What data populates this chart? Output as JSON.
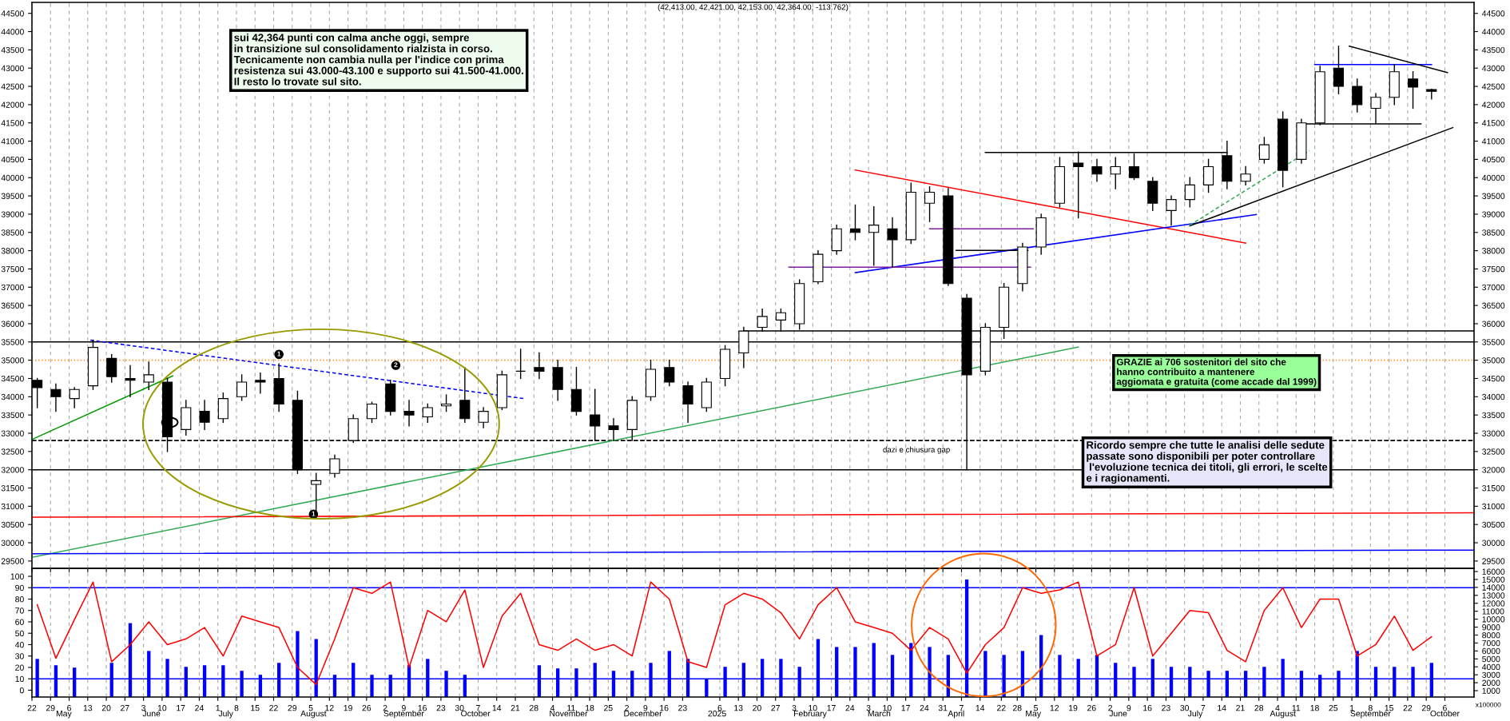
{
  "chart_data": [
    {
      "type": "candlestick",
      "title": "(42,413.00, 42,421.00, 42,153.00, 42,364.00, -113.762)",
      "x": [
        "2024-04-24",
        "2024-05-01",
        "2024-05-08",
        "2024-05-15",
        "2024-05-22",
        "2024-05-29",
        "2024-06-05",
        "2024-06-12",
        "2024-06-19",
        "2024-06-26",
        "2024-07-03",
        "2024-07-10",
        "2024-07-17",
        "2024-07-24",
        "2024-07-31",
        "2024-08-07",
        "2024-08-14",
        "2024-08-21",
        "2024-08-28",
        "2024-09-04",
        "2024-09-11",
        "2024-09-18",
        "2024-09-25",
        "2024-10-02",
        "2024-10-09",
        "2024-10-16",
        "2024-10-23",
        "2024-10-30",
        "2024-11-06",
        "2024-11-13",
        "2024-11-20",
        "2024-11-27",
        "2024-12-04",
        "2024-12-11",
        "2024-12-18",
        "2024-12-25",
        "2025-01-01",
        "2025-01-08",
        "2025-01-15",
        "2025-01-22",
        "2025-01-29",
        "2025-02-05",
        "2025-02-12",
        "2025-02-19",
        "2025-02-26",
        "2025-03-05",
        "2025-03-12",
        "2025-03-19",
        "2025-03-26",
        "2025-04-02",
        "2025-04-09",
        "2025-04-16",
        "2025-04-23",
        "2025-04-30",
        "2025-05-07",
        "2025-05-14",
        "2025-05-21",
        "2025-05-28",
        "2025-06-04",
        "2025-06-11",
        "2025-06-18",
        "2025-06-25",
        "2025-07-02",
        "2025-07-09",
        "2025-07-16",
        "2025-07-23",
        "2025-07-30",
        "2025-08-06",
        "2025-08-13",
        "2025-08-20",
        "2025-08-27",
        "2025-09-03",
        "2025-09-10",
        "2025-09-17",
        "2025-09-24",
        "2025-10-01"
      ],
      "ohlc": [
        [
          34450,
          34500,
          33700,
          34250
        ],
        [
          34200,
          34350,
          33600,
          34000
        ],
        [
          33950,
          34250,
          33700,
          34200
        ],
        [
          34300,
          35550,
          34200,
          35350
        ],
        [
          35050,
          35150,
          34400,
          34550
        ],
        [
          34500,
          34850,
          34000,
          34450
        ],
        [
          34400,
          34950,
          34200,
          34600
        ],
        [
          34400,
          34500,
          32500,
          32900
        ],
        [
          33100,
          33900,
          32950,
          33700
        ],
        [
          33600,
          33900,
          33100,
          33300
        ],
        [
          33400,
          34100,
          33300,
          33950
        ],
        [
          34000,
          34600,
          33900,
          34400
        ],
        [
          34450,
          34650,
          34100,
          34400
        ],
        [
          34500,
          34900,
          33600,
          33800
        ],
        [
          33900,
          34150,
          31900,
          32000
        ],
        [
          31600,
          31900,
          30700,
          31700
        ],
        [
          31900,
          32400,
          31800,
          32300
        ],
        [
          32800,
          33500,
          32750,
          33400
        ],
        [
          33400,
          33850,
          33300,
          33800
        ],
        [
          34350,
          34450,
          33500,
          33600
        ],
        [
          33600,
          33900,
          33200,
          33500
        ],
        [
          33450,
          33800,
          33300,
          33700
        ],
        [
          33750,
          34050,
          33600,
          33800
        ],
        [
          33900,
          34800,
          33300,
          33400
        ],
        [
          33300,
          33700,
          33150,
          33600
        ],
        [
          33700,
          34700,
          33650,
          34600
        ],
        [
          34700,
          35300,
          34500,
          34700
        ],
        [
          34800,
          35200,
          34500,
          34700
        ],
        [
          34800,
          35000,
          33900,
          34200
        ],
        [
          34200,
          34800,
          33500,
          33600
        ],
        [
          33500,
          34200,
          32800,
          33200
        ],
        [
          33200,
          33400,
          32800,
          33100
        ],
        [
          33100,
          34000,
          32800,
          33900
        ],
        [
          34000,
          35000,
          33900,
          34750
        ],
        [
          34800,
          35000,
          34300,
          34400
        ],
        [
          34300,
          34400,
          33300,
          33800
        ],
        [
          33700,
          34500,
          33600,
          34400
        ],
        [
          34500,
          35400,
          34300,
          35300
        ],
        [
          35200,
          35900,
          34800,
          35800
        ],
        [
          35900,
          36400,
          35800,
          36200
        ],
        [
          36100,
          36400,
          35800,
          36300
        ],
        [
          36000,
          37200,
          35850,
          37100
        ],
        [
          37150,
          38000,
          37100,
          37900
        ],
        [
          38000,
          38700,
          37900,
          38600
        ],
        [
          38600,
          39250,
          38300,
          38500
        ],
        [
          38500,
          39200,
          37600,
          38700
        ],
        [
          38600,
          38900,
          37550,
          38300
        ],
        [
          38300,
          39850,
          38200,
          39600
        ],
        [
          39300,
          39750,
          38800,
          39600
        ],
        [
          39500,
          39700,
          37050,
          37100
        ],
        [
          36700,
          36800,
          32000,
          34600
        ],
        [
          34700,
          36000,
          34600,
          35900
        ],
        [
          35900,
          37100,
          35600,
          37000
        ],
        [
          37100,
          38200,
          36900,
          38100
        ],
        [
          38100,
          39000,
          37900,
          38900
        ],
        [
          39300,
          40550,
          39200,
          40300
        ],
        [
          40400,
          40700,
          38900,
          40300
        ],
        [
          40300,
          40500,
          39900,
          40100
        ],
        [
          40100,
          40550,
          39700,
          40300
        ],
        [
          40300,
          40650,
          39950,
          40000
        ],
        [
          39900,
          40000,
          39100,
          39300
        ],
        [
          39100,
          39500,
          38700,
          39400
        ],
        [
          39400,
          40000,
          39200,
          39800
        ],
        [
          39800,
          40500,
          39600,
          40300
        ],
        [
          40600,
          41000,
          39700,
          39900
        ],
        [
          39900,
          40300,
          39800,
          40100
        ],
        [
          40500,
          41100,
          40400,
          40900
        ],
        [
          41600,
          41800,
          39750,
          40200
        ],
        [
          40500,
          41600,
          40400,
          41500
        ],
        [
          41500,
          43050,
          41450,
          42900
        ],
        [
          43000,
          43600,
          42300,
          42500
        ],
        [
          42500,
          42700,
          41800,
          42000
        ],
        [
          41900,
          42300,
          41500,
          42200
        ],
        [
          42200,
          43100,
          42000,
          42900
        ],
        [
          42700,
          42900,
          41900,
          42480
        ],
        [
          42413,
          42421,
          42153,
          42364
        ]
      ],
      "color": "#000000",
      "series": [
        {
          "type": "line",
          "color": "#009900",
          "x": [
            "2024-04-22",
            "2024-06-14"
          ],
          "values": [
            32830,
            34570
          ]
        },
        {
          "type": "line",
          "color": "#0000ff",
          "line_style": "dashed",
          "x": [
            "2024-05-14",
            "2024-10-24"
          ],
          "values": [
            35550,
            33950
          ]
        },
        {
          "type": "line",
          "color": "#33aa55",
          "x": [
            "2024-04-22",
            "2025-05-21"
          ],
          "values": [
            29600,
            35360
          ]
        },
        {
          "type": "line",
          "color": "#ff0000",
          "x": [
            "2025-02-26",
            "2025-07-23"
          ],
          "values": [
            40210,
            38210
          ]
        },
        {
          "type": "line",
          "color": "#0000ff",
          "x": [
            "2025-02-26",
            "2025-07-27"
          ],
          "values": [
            37400,
            38990
          ]
        },
        {
          "type": "line",
          "color": "#7b1fa2",
          "x": [
            "2025-02-01",
            "2025-05-03"
          ],
          "values": [
            37550,
            37550
          ]
        },
        {
          "type": "line",
          "color": "#7b1fa2",
          "x": [
            "2025-03-26",
            "2025-05-04"
          ],
          "values": [
            38600,
            38600
          ]
        },
        {
          "type": "line",
          "color": "#000000",
          "x": [
            "2025-04-05",
            "2025-05-02"
          ],
          "values": [
            38010,
            38010
          ]
        },
        {
          "type": "line",
          "color": "#000000",
          "x": [
            "2025-04-16",
            "2025-07-16"
          ],
          "values": [
            40690,
            40690
          ]
        },
        {
          "type": "line",
          "color": "#000000",
          "x": [
            "2025-07-02",
            "2025-10-09"
          ],
          "values": [
            38680,
            41370
          ]
        },
        {
          "type": "line",
          "color": "#33aa55",
          "line_style": "dashed",
          "x": [
            "2025-07-02",
            "2025-08-16"
          ],
          "values": [
            38700,
            40740
          ]
        },
        {
          "type": "line",
          "color": "#0000ff",
          "x": [
            "2025-08-18",
            "2025-10-01"
          ],
          "values": [
            43100,
            43100
          ]
        },
        {
          "type": "line",
          "color": "#000000",
          "x": [
            "2025-08-15",
            "2025-09-27"
          ],
          "values": [
            41470,
            41470
          ]
        },
        {
          "type": "line",
          "color": "#000000",
          "x": [
            "2025-08-31",
            "2025-10-07"
          ],
          "values": [
            43600,
            42880
          ]
        },
        {
          "type": "line",
          "color": "#000000",
          "x": [
            "2025-01-15",
            "2025-10-17"
          ],
          "values": [
            35800,
            35800
          ]
        },
        {
          "type": "line",
          "color": "#ff0000",
          "x": [
            "2024-04-22",
            "2025-10-17"
          ],
          "values": [
            30700,
            30820
          ]
        },
        {
          "type": "line",
          "color": "#0000ff",
          "x": [
            "2024-04-22",
            "2025-10-17"
          ],
          "values": [
            29700,
            29800
          ]
        }
      ],
      "ref_lines": [
        {
          "axis": "y",
          "value": 35500,
          "color": "#000000"
        },
        {
          "axis": "y",
          "value": 32000,
          "color": "#000000"
        },
        {
          "axis": "y",
          "value": 32800,
          "color": "#000000",
          "line_style": "dashed"
        },
        {
          "axis": "y",
          "value": 35000,
          "color": "#ff9933",
          "line_style": "dotted"
        }
      ],
      "annotations": [
        "sui 42,364 punti con calma anche oggi, sempre\nin transizione sul consolidamento rialzista in corso.\nTecnicamente non cambia nulla per l'indice con prima\nresistenza sui 43.000-43.100 e supporto sui 41.500-41.000.\nIl resto lo trovate sul sito.",
        "GRAZIE ai 706 sostenitori del sito che\nhanno contribuito a mantenere\naggiomata e gratuita (come accade dal 1999)",
        "Ricordo sempre che tutte le analisi delle sedute\npassate sono disponibili per poter controllare\n l'evoluzione tecnica dei titoli, gli errori, le scelte\ne i ragionamenti.",
        "dazi e chiusura gap",
        {
          "text": "1",
          "x": "2024-07-24",
          "y": 35160
        },
        {
          "text": "2",
          "x": "2024-09-06",
          "y": 34860
        },
        {
          "text": "1",
          "x": "2024-08-06",
          "y": 30780
        }
      ],
      "xlim": [
        "2024-04-22",
        "2025-10-17"
      ],
      "xticks": [
        {
          "value": "2024-04-22",
          "label": null
        },
        {
          "value": "2024-04-29",
          "label": null
        },
        {
          "value": "2024-05-06",
          "label": null
        },
        {
          "value": "2024-05-13",
          "label": null
        },
        {
          "value": "2024-05-20",
          "label": null
        },
        {
          "value": "2024-05-27",
          "label": null
        },
        {
          "value": "2024-06-03",
          "label": null
        },
        {
          "value": "2024-06-10",
          "label": null
        },
        {
          "value": "2024-06-17",
          "label": null
        },
        {
          "value": "2024-06-24",
          "label": null
        },
        {
          "value": "2024-07-01",
          "label": null
        },
        {
          "value": "2024-07-08",
          "label": null
        },
        {
          "value": "2024-07-15",
          "label": null
        },
        {
          "value": "2024-07-22",
          "label": null
        },
        {
          "value": "2024-07-29",
          "label": null
        },
        {
          "value": "2024-08-05",
          "label": null
        },
        {
          "value": "2024-08-12",
          "label": null
        },
        {
          "value": "2024-08-19",
          "label": null
        },
        {
          "value": "2024-08-26",
          "label": null
        },
        {
          "value": "2024-09-02",
          "label": null
        },
        {
          "value": "2024-09-09",
          "label": null
        },
        {
          "value": "2024-09-16",
          "label": null
        },
        {
          "value": "2024-09-23",
          "label": null
        },
        {
          "value": "2024-09-30",
          "label": null
        },
        {
          "value": "2024-10-07",
          "label": null
        },
        {
          "value": "2024-10-14",
          "label": null
        },
        {
          "value": "2024-10-21",
          "label": null
        },
        {
          "value": "2024-10-28",
          "label": null
        },
        {
          "value": "2024-11-04",
          "label": null
        },
        {
          "value": "2024-11-11",
          "label": null
        },
        {
          "value": "2024-11-18",
          "label": null
        },
        {
          "value": "2024-11-25",
          "label": null
        },
        {
          "value": "2024-12-02",
          "label": null
        },
        {
          "value": "2024-12-09",
          "label": null
        },
        {
          "value": "2024-12-16",
          "label": null
        },
        {
          "value": "2024-12-23",
          "label": null
        },
        {
          "value": "2025-01-06",
          "label": null
        },
        {
          "value": "2025-01-13",
          "label": null
        },
        {
          "value": "2025-01-20",
          "label": null
        },
        {
          "value": "2025-01-27",
          "label": null
        },
        {
          "value": "2025-02-03",
          "label": null
        },
        {
          "value": "2025-02-10",
          "label": null
        },
        {
          "value": "2025-02-17",
          "label": null
        },
        {
          "value": "2025-02-24",
          "label": null
        },
        {
          "value": "2025-03-03",
          "label": null
        },
        {
          "value": "2025-03-10",
          "label": null
        },
        {
          "value": "2025-03-17",
          "label": null
        },
        {
          "value": "2025-03-24",
          "label": null
        },
        {
          "value": "2025-03-31",
          "label": null
        },
        {
          "value": "2025-04-07",
          "label": null
        },
        {
          "value": "2025-04-14",
          "label": null
        },
        {
          "value": "2025-04-22",
          "label": null
        },
        {
          "value": "2025-04-28",
          "label": null
        },
        {
          "value": "2025-05-05",
          "label": null
        },
        {
          "value": "2025-05-12",
          "label": null
        },
        {
          "value": "2025-05-19",
          "label": null
        },
        {
          "value": "2025-05-26",
          "label": null
        },
        {
          "value": "2025-06-02",
          "label": null
        },
        {
          "value": "2025-06-09",
          "label": null
        },
        {
          "value": "2025-06-16",
          "label": null
        },
        {
          "value": "2025-06-23",
          "label": null
        },
        {
          "value": "2025-06-30",
          "label": null
        },
        {
          "value": "2025-07-07",
          "label": null
        },
        {
          "value": "2025-07-14",
          "label": null
        },
        {
          "value": "2025-07-21",
          "label": null
        },
        {
          "value": "2025-07-28",
          "label": null
        },
        {
          "value": "2025-08-04",
          "label": null
        },
        {
          "value": "2025-08-11",
          "label": null
        },
        {
          "value": "2025-08-18",
          "label": null
        },
        {
          "value": "2025-08-25",
          "label": null
        },
        {
          "value": "2025-09-01",
          "label": null
        },
        {
          "value": "2025-09-08",
          "label": null
        },
        {
          "value": "2025-09-15",
          "label": null
        },
        {
          "value": "2025-09-22",
          "label": null
        },
        {
          "value": "2025-09-29",
          "label": null
        },
        {
          "value": "2025-10-06",
          "label": null
        }
      ],
      "ylim": [
        29300,
        44800
      ],
      "yticks": [
        29500,
        30000,
        30500,
        31000,
        31500,
        32000,
        32500,
        33000,
        33500,
        34000,
        34500,
        35000,
        35500,
        36000,
        36500,
        37000,
        37500,
        38000,
        38500,
        39000,
        39500,
        40000,
        40500,
        41000,
        41500,
        42000,
        42500,
        43000,
        43500,
        44000,
        44500
      ],
      "y2lim": [
        29300,
        44800
      ],
      "y2ticks": [
        29500,
        30000,
        30500,
        31000,
        31500,
        32000,
        32500,
        33000,
        33500,
        34000,
        34500,
        35000,
        35500,
        36000,
        36500,
        37000,
        37500,
        38000,
        38500,
        39000,
        39500,
        40000,
        40500,
        41000,
        41500,
        42000,
        42500,
        43000,
        43500,
        44000,
        44500
      ],
      "grid": "x",
      "tick_labels": "y"
    },
    {
      "type": "line",
      "x": [
        "2024-04-24",
        "2024-05-01",
        "2024-05-08",
        "2024-05-15",
        "2024-05-22",
        "2024-05-29",
        "2024-06-05",
        "2024-06-12",
        "2024-06-19",
        "2024-06-26",
        "2024-07-03",
        "2024-07-10",
        "2024-07-17",
        "2024-07-24",
        "2024-07-31",
        "2024-08-07",
        "2024-08-14",
        "2024-08-21",
        "2024-08-28",
        "2024-09-04",
        "2024-09-11",
        "2024-09-18",
        "2024-09-25",
        "2024-10-02",
        "2024-10-09",
        "2024-10-16",
        "2024-10-23",
        "2024-10-30",
        "2024-11-06",
        "2024-11-13",
        "2024-11-20",
        "2024-11-27",
        "2024-12-04",
        "2024-12-11",
        "2024-12-18",
        "2024-12-25",
        "2025-01-01",
        "2025-01-08",
        "2025-01-15",
        "2025-01-22",
        "2025-01-29",
        "2025-02-05",
        "2025-02-12",
        "2025-02-19",
        "2025-02-26",
        "2025-03-05",
        "2025-03-12",
        "2025-03-19",
        "2025-03-26",
        "2025-04-02",
        "2025-04-09",
        "2025-04-16",
        "2025-04-23",
        "2025-04-30",
        "2025-05-07",
        "2025-05-14",
        "2025-05-21",
        "2025-05-28",
        "2025-06-04",
        "2025-06-11",
        "2025-06-18",
        "2025-06-25",
        "2025-07-02",
        "2025-07-09",
        "2025-07-16",
        "2025-07-23",
        "2025-07-30",
        "2025-08-06",
        "2025-08-13",
        "2025-08-20",
        "2025-08-27",
        "2025-09-03",
        "2025-09-10",
        "2025-09-17",
        "2025-09-24",
        "2025-10-01"
      ],
      "series": [
        {
          "type": "line",
          "color": "#ff0000",
          "values": [
            75,
            28,
            62,
            95,
            25,
            40,
            60,
            40,
            45,
            55,
            30,
            65,
            60,
            55,
            20,
            5,
            45,
            90,
            85,
            95,
            20,
            70,
            60,
            88,
            20,
            65,
            85,
            40,
            35,
            45,
            35,
            40,
            30,
            95,
            80,
            25,
            20,
            75,
            85,
            80,
            68,
            45,
            75,
            90,
            60,
            55,
            50,
            35,
            55,
            45,
            15,
            40,
            55,
            90,
            85,
            88,
            95,
            30,
            40,
            90,
            30,
            50,
            70,
            68,
            35,
            25,
            70,
            90,
            55,
            80,
            80,
            30,
            40,
            65,
            35,
            47
          ]
        },
        {
          "type": "bar",
          "axis": "y2",
          "color": "#0000ff",
          "values": [
            5000,
            4200,
            3900,
            null,
            4500,
            9500,
            6000,
            5000,
            4000,
            4200,
            4200,
            3500,
            3000,
            4500,
            8500,
            7500,
            3000,
            4500,
            3000,
            3000,
            4200,
            5000,
            3500,
            3000,
            null,
            null,
            null,
            4200,
            3800,
            3800,
            4500,
            3500,
            3500,
            4500,
            6000,
            5000,
            2500,
            4000,
            4500,
            5000,
            5000,
            4000,
            7500,
            6500,
            6500,
            7000,
            5500,
            7000,
            6500,
            5500,
            15000,
            6000,
            5500,
            6000,
            8000,
            5500,
            5000,
            5500,
            4500,
            4000,
            5000,
            4000,
            4000,
            3500,
            3500,
            3500,
            4000,
            5000,
            3500,
            3000,
            3500,
            6000,
            4000,
            4000,
            4000,
            4500
          ]
        }
      ],
      "ref_lines": [
        {
          "axis": "y",
          "value": 90,
          "color": "#0000ff"
        },
        {
          "axis": "y",
          "value": 10,
          "color": "#0000ff"
        }
      ],
      "annotations": [
        "x100000"
      ],
      "xlim": [
        "2024-04-22",
        "2025-10-17"
      ],
      "xticks": [
        {
          "value": "2024-04-22",
          "label": "22"
        },
        {
          "value": "2024-04-29",
          "label": "29"
        },
        {
          "value": "2024-05-06",
          "label": "6"
        },
        {
          "value": "2024-05-13",
          "label": "13"
        },
        {
          "value": "2024-05-20",
          "label": "20"
        },
        {
          "value": "2024-05-27",
          "label": "27"
        },
        {
          "value": "2024-06-03",
          "label": "3"
        },
        {
          "value": "2024-06-10",
          "label": "10"
        },
        {
          "value": "2024-06-17",
          "label": "17"
        },
        {
          "value": "2024-06-24",
          "label": "24"
        },
        {
          "value": "2024-07-01",
          "label": "1"
        },
        {
          "value": "2024-07-08",
          "label": "8"
        },
        {
          "value": "2024-07-15",
          "label": "15"
        },
        {
          "value": "2024-07-22",
          "label": "22"
        },
        {
          "value": "2024-07-29",
          "label": "29"
        },
        {
          "value": "2024-08-05",
          "label": "5"
        },
        {
          "value": "2024-08-12",
          "label": "12"
        },
        {
          "value": "2024-08-19",
          "label": "19"
        },
        {
          "value": "2024-08-26",
          "label": "26"
        },
        {
          "value": "2024-09-02",
          "label": "2"
        },
        {
          "value": "2024-09-09",
          "label": "9"
        },
        {
          "value": "2024-09-16",
          "label": "16"
        },
        {
          "value": "2024-09-23",
          "label": "23"
        },
        {
          "value": "2024-09-30",
          "label": "30"
        },
        {
          "value": "2024-10-07",
          "label": "7"
        },
        {
          "value": "2024-10-14",
          "label": "14"
        },
        {
          "value": "2024-10-21",
          "label": "21"
        },
        {
          "value": "2024-10-28",
          "label": "28"
        },
        {
          "value": "2024-11-04",
          "label": "4"
        },
        {
          "value": "2024-11-11",
          "label": "11"
        },
        {
          "value": "2024-11-18",
          "label": "18"
        },
        {
          "value": "2024-11-25",
          "label": "25"
        },
        {
          "value": "2024-12-02",
          "label": "2"
        },
        {
          "value": "2024-12-09",
          "label": "9"
        },
        {
          "value": "2024-12-16",
          "label": "16"
        },
        {
          "value": "2024-12-23",
          "label": "23"
        },
        {
          "value": "2025-01-06",
          "label": "6"
        },
        {
          "value": "2025-01-13",
          "label": "13"
        },
        {
          "value": "2025-01-20",
          "label": "20"
        },
        {
          "value": "2025-01-27",
          "label": "27"
        },
        {
          "value": "2025-02-03",
          "label": "3"
        },
        {
          "value": "2025-02-10",
          "label": "10"
        },
        {
          "value": "2025-02-17",
          "label": "17"
        },
        {
          "value": "2025-02-24",
          "label": "24"
        },
        {
          "value": "2025-03-03",
          "label": "3"
        },
        {
          "value": "2025-03-10",
          "label": "10"
        },
        {
          "value": "2025-03-17",
          "label": "17"
        },
        {
          "value": "2025-03-24",
          "label": "24"
        },
        {
          "value": "2025-03-31",
          "label": "31"
        },
        {
          "value": "2025-04-07",
          "label": "7"
        },
        {
          "value": "2025-04-14",
          "label": "14"
        },
        {
          "value": "2025-04-22",
          "label": "22"
        },
        {
          "value": "2025-04-28",
          "label": "28"
        },
        {
          "value": "2025-05-05",
          "label": "5"
        },
        {
          "value": "2025-05-12",
          "label": "12"
        },
        {
          "value": "2025-05-19",
          "label": "19"
        },
        {
          "value": "2025-05-26",
          "label": "26"
        },
        {
          "value": "2025-06-02",
          "label": "2"
        },
        {
          "value": "2025-06-09",
          "label": "9"
        },
        {
          "value": "2025-06-16",
          "label": "16"
        },
        {
          "value": "2025-06-23",
          "label": "23"
        },
        {
          "value": "2025-06-30",
          "label": "30"
        },
        {
          "value": "2025-07-07",
          "label": "7"
        },
        {
          "value": "2025-07-14",
          "label": "14"
        },
        {
          "value": "2025-07-21",
          "label": "21"
        },
        {
          "value": "2025-07-28",
          "label": "28"
        },
        {
          "value": "2025-08-04",
          "label": "4"
        },
        {
          "value": "2025-08-11",
          "label": "11"
        },
        {
          "value": "2025-08-18",
          "label": "18"
        },
        {
          "value": "2025-08-25",
          "label": "25"
        },
        {
          "value": "2025-09-01",
          "label": "1"
        },
        {
          "value": "2025-09-08",
          "label": "8"
        },
        {
          "value": "2025-09-15",
          "label": "15"
        },
        {
          "value": "2025-09-22",
          "label": "22"
        },
        {
          "value": "2025-09-29",
          "label": "29"
        },
        {
          "value": "2025-10-06",
          "label": "6"
        }
      ],
      "x2lim": [
        "2024-04-22",
        "2025-10-17"
      ],
      "x2ticks": [
        {
          "value": "2024-05-04",
          "label": "May"
        },
        {
          "value": "2024-06-06",
          "label": "June"
        },
        {
          "value": "2024-07-04",
          "label": "July"
        },
        {
          "value": "2024-08-06",
          "label": "August"
        },
        {
          "value": "2024-09-09",
          "label": "September"
        },
        {
          "value": "2024-10-06",
          "label": "October"
        },
        {
          "value": "2024-11-10",
          "label": "November"
        },
        {
          "value": "2024-12-08",
          "label": "December"
        },
        {
          "value": "2025-01-05",
          "label": "2025"
        },
        {
          "value": "2025-02-09",
          "label": "February"
        },
        {
          "value": "2025-03-07",
          "label": "March"
        },
        {
          "value": "2025-04-05",
          "label": "April"
        },
        {
          "value": "2025-05-04",
          "label": "May"
        },
        {
          "value": "2025-06-05",
          "label": "June"
        },
        {
          "value": "2025-07-04",
          "label": "July"
        },
        {
          "value": "2025-08-06",
          "label": "August"
        },
        {
          "value": "2025-09-08",
          "label": "September"
        },
        {
          "value": "2025-10-06",
          "label": "October"
        }
      ],
      "ylim": [
        -6,
        107
      ],
      "yticks": [
        0,
        10,
        20,
        30,
        40,
        50,
        60,
        70,
        80,
        90,
        100
      ],
      "y2lim": [
        200,
        16400
      ],
      "y2ticks": [
        1000,
        2000,
        3000,
        4000,
        5000,
        6000,
        7000,
        8000,
        9000,
        10000,
        11000,
        12000,
        13000,
        14000,
        15000,
        16000
      ],
      "grid": "x"
    }
  ]
}
